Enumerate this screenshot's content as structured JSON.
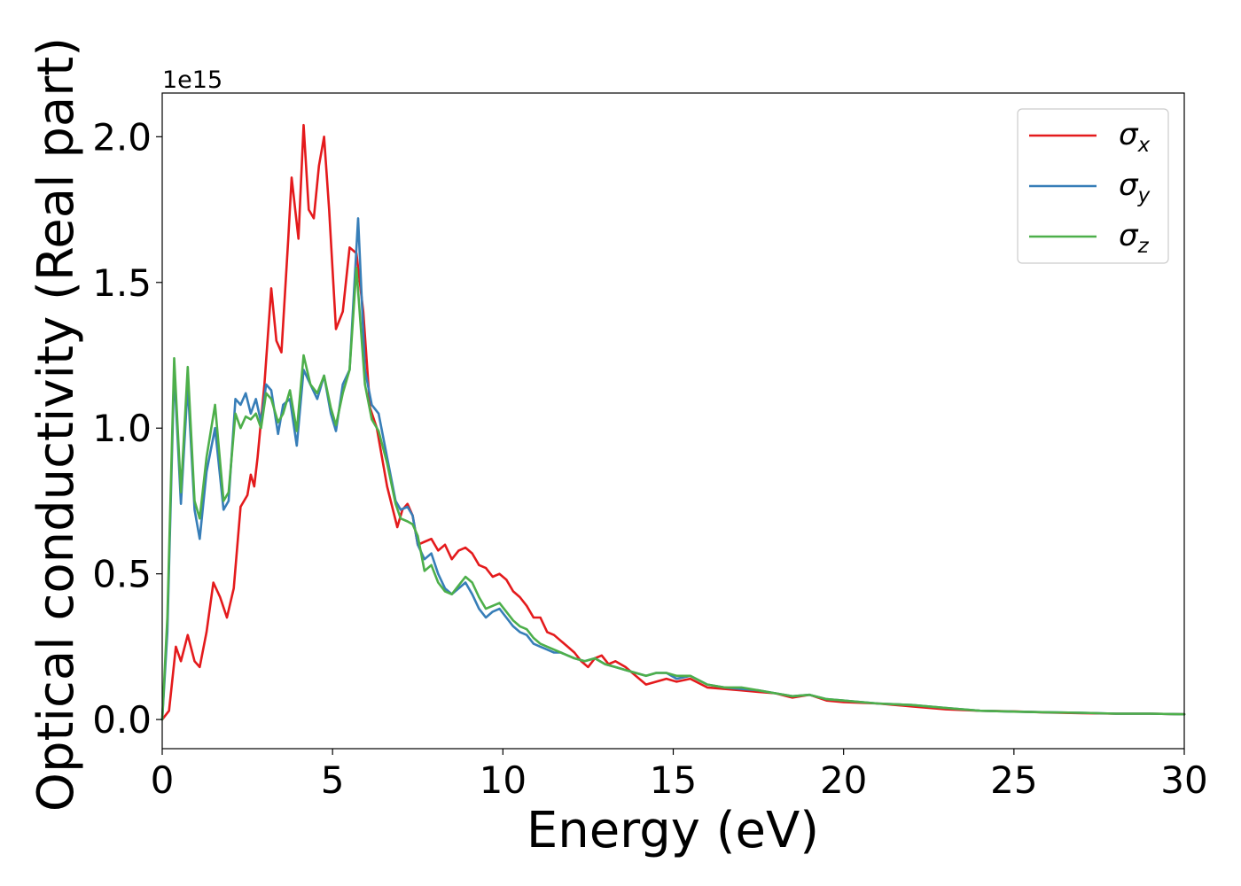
{
  "chart_data": {
    "type": "line",
    "xlabel": "Energy (eV)",
    "ylabel": "Optical conductivity (Real part)",
    "offset_text": "1e15",
    "xlim": [
      0,
      30
    ],
    "ylim": [
      -0.1,
      2.15
    ],
    "xticks": [
      0,
      5,
      10,
      15,
      20,
      25,
      30
    ],
    "xtick_labels": [
      "0",
      "5",
      "10",
      "15",
      "20",
      "25",
      "30"
    ],
    "yticks": [
      0.0,
      0.5,
      1.0,
      1.5,
      2.0
    ],
    "ytick_labels": [
      "0.0",
      "0.5",
      "1.0",
      "1.5",
      "2.0"
    ],
    "grid": false,
    "legend_position": "top-right",
    "y_multiplier": 1000000000000000.0,
    "series": [
      {
        "name": "σx",
        "symbol": "σ",
        "subscript": "x",
        "color": "#e41a1c",
        "x": [
          0,
          0.2,
          0.4,
          0.55,
          0.75,
          0.95,
          1.1,
          1.3,
          1.5,
          1.7,
          1.9,
          2.1,
          2.3,
          2.5,
          2.6,
          2.7,
          2.8,
          3.0,
          3.2,
          3.35,
          3.5,
          3.7,
          3.8,
          4.0,
          4.15,
          4.3,
          4.45,
          4.6,
          4.75,
          4.9,
          5.1,
          5.3,
          5.5,
          5.7,
          5.9,
          6.1,
          6.3,
          6.6,
          6.9,
          7.05,
          7.2,
          7.35,
          7.5,
          7.7,
          7.9,
          8.1,
          8.3,
          8.5,
          8.7,
          8.9,
          9.1,
          9.3,
          9.5,
          9.7,
          9.9,
          10.1,
          10.3,
          10.5,
          10.7,
          10.9,
          11.1,
          11.3,
          11.5,
          11.7,
          11.9,
          12.1,
          12.3,
          12.5,
          12.7,
          12.9,
          13.1,
          13.3,
          13.6,
          13.9,
          14.2,
          14.5,
          14.8,
          15.1,
          15.5,
          16,
          16.5,
          17,
          17.5,
          18,
          18.5,
          19,
          19.5,
          20,
          21,
          22,
          23,
          24,
          25,
          26,
          27,
          28,
          29,
          30
        ],
        "y": [
          0,
          0.03,
          0.25,
          0.2,
          0.29,
          0.2,
          0.18,
          0.3,
          0.47,
          0.42,
          0.35,
          0.45,
          0.73,
          0.77,
          0.84,
          0.8,
          0.9,
          1.15,
          1.48,
          1.3,
          1.26,
          1.65,
          1.86,
          1.65,
          2.04,
          1.75,
          1.72,
          1.9,
          2.0,
          1.75,
          1.34,
          1.4,
          1.62,
          1.6,
          1.4,
          1.07,
          1.0,
          0.8,
          0.66,
          0.72,
          0.74,
          0.7,
          0.6,
          0.61,
          0.62,
          0.58,
          0.6,
          0.55,
          0.58,
          0.59,
          0.57,
          0.53,
          0.52,
          0.49,
          0.5,
          0.48,
          0.44,
          0.42,
          0.39,
          0.35,
          0.35,
          0.3,
          0.29,
          0.27,
          0.25,
          0.23,
          0.2,
          0.18,
          0.21,
          0.22,
          0.19,
          0.2,
          0.18,
          0.15,
          0.12,
          0.13,
          0.14,
          0.13,
          0.14,
          0.11,
          0.105,
          0.1,
          0.095,
          0.09,
          0.075,
          0.085,
          0.065,
          0.06,
          0.055,
          0.045,
          0.035,
          0.03,
          0.028,
          0.024,
          0.022,
          0.02,
          0.02,
          0.018
        ]
      },
      {
        "name": "σy",
        "symbol": "σ",
        "subscript": "y",
        "color": "#377eb8",
        "x": [
          0,
          0.15,
          0.35,
          0.55,
          0.75,
          0.95,
          1.1,
          1.3,
          1.55,
          1.8,
          1.95,
          2.15,
          2.3,
          2.45,
          2.6,
          2.75,
          2.9,
          3.05,
          3.2,
          3.4,
          3.55,
          3.75,
          3.95,
          4.15,
          4.35,
          4.55,
          4.75,
          4.95,
          5.1,
          5.3,
          5.5,
          5.75,
          5.95,
          6.15,
          6.35,
          6.6,
          6.85,
          7.0,
          7.2,
          7.35,
          7.5,
          7.7,
          7.9,
          8.1,
          8.3,
          8.5,
          8.7,
          8.9,
          9.1,
          9.3,
          9.5,
          9.7,
          9.9,
          10.1,
          10.3,
          10.5,
          10.7,
          10.9,
          11.1,
          11.3,
          11.5,
          11.7,
          11.9,
          12.1,
          12.4,
          12.7,
          13.0,
          13.3,
          13.6,
          13.9,
          14.2,
          14.5,
          14.8,
          15.1,
          15.5,
          16,
          16.5,
          17,
          17.5,
          18,
          18.5,
          19,
          19.5,
          20,
          21,
          22,
          23,
          24,
          25,
          26,
          27,
          28,
          29,
          30
        ],
        "y": [
          0,
          0.3,
          1.2,
          0.74,
          1.15,
          0.72,
          0.62,
          0.85,
          1.0,
          0.72,
          0.75,
          1.1,
          1.08,
          1.12,
          1.05,
          1.1,
          1.02,
          1.15,
          1.13,
          0.98,
          1.08,
          1.1,
          0.94,
          1.2,
          1.15,
          1.1,
          1.18,
          1.05,
          0.99,
          1.15,
          1.2,
          1.72,
          1.2,
          1.08,
          1.05,
          0.9,
          0.75,
          0.72,
          0.73,
          0.7,
          0.6,
          0.55,
          0.57,
          0.5,
          0.45,
          0.43,
          0.45,
          0.47,
          0.43,
          0.38,
          0.35,
          0.37,
          0.38,
          0.35,
          0.32,
          0.3,
          0.29,
          0.26,
          0.25,
          0.24,
          0.23,
          0.23,
          0.22,
          0.21,
          0.2,
          0.21,
          0.19,
          0.18,
          0.17,
          0.16,
          0.15,
          0.16,
          0.16,
          0.14,
          0.15,
          0.12,
          0.11,
          0.105,
          0.1,
          0.09,
          0.08,
          0.085,
          0.07,
          0.065,
          0.055,
          0.05,
          0.04,
          0.03,
          0.027,
          0.025,
          0.023,
          0.02,
          0.02,
          0.018
        ]
      },
      {
        "name": "σz",
        "symbol": "σ",
        "subscript": "z",
        "color": "#4daf4a",
        "x": [
          0,
          0.15,
          0.35,
          0.55,
          0.75,
          0.95,
          1.1,
          1.3,
          1.55,
          1.8,
          1.95,
          2.15,
          2.3,
          2.45,
          2.6,
          2.75,
          2.9,
          3.05,
          3.2,
          3.4,
          3.55,
          3.75,
          3.95,
          4.15,
          4.35,
          4.55,
          4.75,
          4.95,
          5.1,
          5.3,
          5.5,
          5.7,
          5.95,
          6.15,
          6.35,
          6.6,
          6.85,
          7.0,
          7.2,
          7.35,
          7.5,
          7.7,
          7.9,
          8.1,
          8.3,
          8.5,
          8.7,
          8.9,
          9.1,
          9.3,
          9.5,
          9.7,
          9.9,
          10.1,
          10.3,
          10.5,
          10.7,
          10.9,
          11.1,
          11.3,
          11.5,
          11.7,
          11.9,
          12.1,
          12.4,
          12.7,
          13.0,
          13.3,
          13.6,
          13.9,
          14.2,
          14.5,
          14.8,
          15.1,
          15.5,
          16,
          16.5,
          17,
          17.5,
          18,
          18.5,
          19,
          19.5,
          20,
          21,
          22,
          23,
          24,
          25,
          26,
          27,
          28,
          29,
          30
        ],
        "y": [
          0,
          0.35,
          1.24,
          0.78,
          1.21,
          0.75,
          0.69,
          0.9,
          1.08,
          0.75,
          0.78,
          1.05,
          1.0,
          1.04,
          1.03,
          1.05,
          1.0,
          1.12,
          1.1,
          1.02,
          1.05,
          1.13,
          0.99,
          1.25,
          1.15,
          1.12,
          1.18,
          1.07,
          1.01,
          1.12,
          1.2,
          1.55,
          1.15,
          1.03,
          0.99,
          0.88,
          0.74,
          0.69,
          0.68,
          0.67,
          0.63,
          0.51,
          0.53,
          0.47,
          0.44,
          0.43,
          0.46,
          0.49,
          0.47,
          0.42,
          0.38,
          0.39,
          0.4,
          0.37,
          0.34,
          0.32,
          0.31,
          0.28,
          0.26,
          0.25,
          0.24,
          0.23,
          0.22,
          0.21,
          0.2,
          0.21,
          0.19,
          0.18,
          0.17,
          0.16,
          0.15,
          0.16,
          0.16,
          0.15,
          0.15,
          0.12,
          0.11,
          0.11,
          0.1,
          0.09,
          0.08,
          0.085,
          0.07,
          0.065,
          0.055,
          0.05,
          0.04,
          0.03,
          0.027,
          0.025,
          0.023,
          0.02,
          0.02,
          0.018
        ]
      }
    ]
  }
}
